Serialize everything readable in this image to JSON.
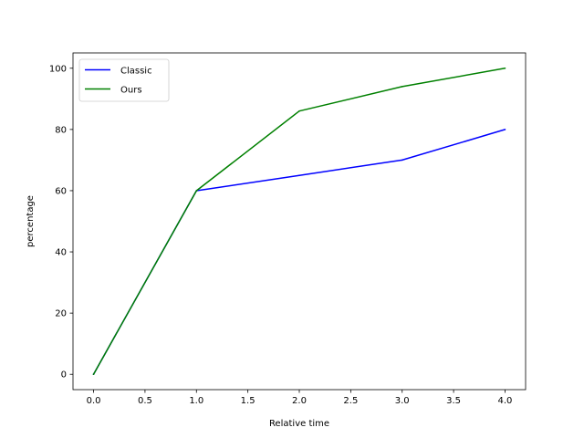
{
  "chart_data": {
    "type": "line",
    "title": "",
    "xlabel": "Relative time",
    "ylabel": "percentage",
    "x": [
      0,
      1,
      2,
      3,
      4
    ],
    "xlim": [
      -0.2,
      4.2
    ],
    "ylim": [
      -5,
      105
    ],
    "xticks": [
      0,
      0.5,
      1,
      1.5,
      2,
      2.5,
      3,
      3.5,
      4
    ],
    "xtick_labels": [
      "0.0",
      "0.5",
      "1.0",
      "1.5",
      "2.0",
      "2.5",
      "3.0",
      "3.5",
      "4.0"
    ],
    "yticks": [
      0,
      20,
      40,
      60,
      80,
      100
    ],
    "ytick_labels": [
      "0",
      "20",
      "40",
      "60",
      "80",
      "100"
    ],
    "grid": false,
    "legend_position": "top-left",
    "series": [
      {
        "name": "Classic",
        "color": "#0000ff",
        "values": [
          0,
          60,
          65,
          70,
          80
        ]
      },
      {
        "name": "Ours",
        "color": "#008000",
        "values": [
          0,
          60,
          86,
          94,
          100
        ]
      }
    ]
  }
}
